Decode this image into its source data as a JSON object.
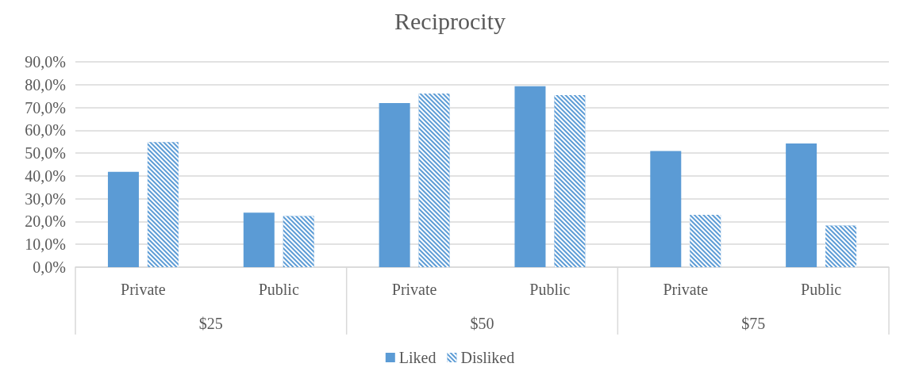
{
  "chart_data": {
    "type": "bar",
    "title": "Reciprocity",
    "categories": [
      "Private",
      "Public",
      "Private",
      "Public",
      "Private",
      "Public"
    ],
    "annotations": [
      "$25",
      "$50",
      "$75"
    ],
    "series": [
      {
        "name": "Liked",
        "color": "#5b9bd5",
        "values": [
          41.8,
          23.9,
          71.9,
          79.3,
          50.9,
          54.2
        ]
      },
      {
        "name": "Disliked",
        "color": "#5b9bd5",
        "values": [
          54.8,
          22.4,
          76.1,
          75.4,
          22.9,
          18.2
        ]
      }
    ],
    "ylim": [
      0,
      90
    ],
    "yticks": [
      {
        "value": 0,
        "label": "0,0%"
      },
      {
        "value": 10,
        "label": "10,0%"
      },
      {
        "value": 20,
        "label": "20,0%"
      },
      {
        "value": 30,
        "label": "30,0%"
      },
      {
        "value": 40,
        "label": "40,0%"
      },
      {
        "value": 50,
        "label": "50,0%"
      },
      {
        "value": 60,
        "label": "60,0%"
      },
      {
        "value": 70,
        "label": "70,0%"
      },
      {
        "value": 80,
        "label": "80,0%"
      },
      {
        "value": 90,
        "label": "90,0%"
      }
    ],
    "grid": "y",
    "legend": "bottom"
  }
}
